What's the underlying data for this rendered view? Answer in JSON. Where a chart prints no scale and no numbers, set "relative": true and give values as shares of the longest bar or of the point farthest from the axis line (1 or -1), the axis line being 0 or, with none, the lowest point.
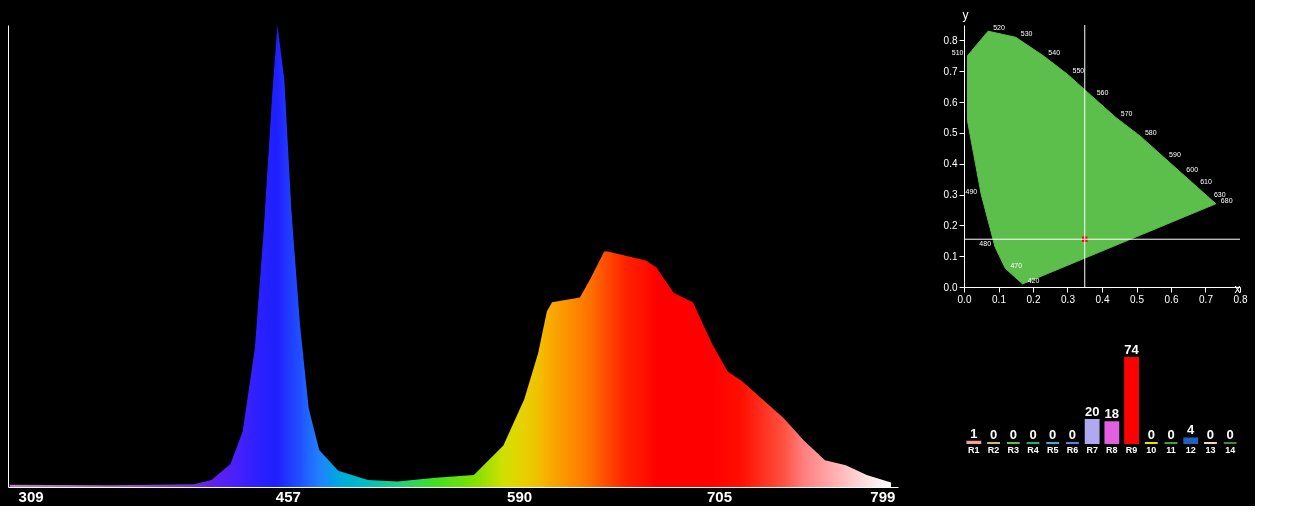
{
  "chart_data": [
    {
      "type": "area",
      "relative": true,
      "tick_labels": "x",
      "grid": false,
      "x": [
        297,
        354,
        403,
        413,
        424,
        431,
        438,
        443,
        448,
        451,
        455,
        459,
        464,
        469,
        475,
        486,
        503,
        520,
        542,
        564,
        581,
        593,
        601,
        606,
        609,
        625,
        631,
        639,
        641,
        652,
        663,
        669,
        679,
        690,
        701,
        710,
        718,
        730,
        742,
        754,
        766,
        778,
        790,
        804
      ],
      "xlim": [
        296,
        808
      ],
      "xticks": [
        309,
        457,
        590,
        705,
        799
      ],
      "series": [
        {
          "type": "area",
          "values": [
            0.005,
            0.004,
            0.006,
            0.015,
            0.05,
            0.12,
            0.3,
            0.55,
            0.85,
            1,
            0.88,
            0.6,
            0.35,
            0.17,
            0.08,
            0.035,
            0.015,
            0.012,
            0.02,
            0.026,
            0.09,
            0.19,
            0.29,
            0.38,
            0.4,
            0.41,
            0.45,
            0.51,
            0.51,
            0.5,
            0.49,
            0.475,
            0.42,
            0.4,
            0.31,
            0.25,
            0.23,
            0.19,
            0.15,
            0.1,
            0.058,
            0.047,
            0.026,
            0.01
          ],
          "colors": [
            "#c080c0",
            "#a060c0",
            "#7030e0",
            "#6020f0",
            "#5020f8",
            "#4020ff",
            "#3020ff",
            "#2820ff",
            "#2020ff",
            "#2020ff",
            "#2030ff",
            "#2040ff",
            "#2050ff",
            "#2068ff",
            "#2080ff",
            "#00a8e0",
            "#00c0c0",
            "#20d080",
            "#40e020",
            "#80e000",
            "#d0e000",
            "#e8d000",
            "#f0c000",
            "#f8b000",
            "#f8a800",
            "#ff8000",
            "#ff7000",
            "#ff5000",
            "#ff4800",
            "#ff2000",
            "#ff1000",
            "#ff0000",
            "#ff0000",
            "#ff0000",
            "#ff0000",
            "#ff0800",
            "#ff1000",
            "#ff3020",
            "#ff5040",
            "#ff8080",
            "#ffa0a0",
            "#ffc0c0",
            "#ffe0e0",
            "#ffffff"
          ]
        }
      ]
    },
    {
      "type": "scatter",
      "xlabel": "x",
      "ylabel": "y",
      "grid": false,
      "xlim": [
        0,
        0.8
      ],
      "ylim": [
        0,
        0.85
      ],
      "xticks": [
        {
          "value": 0,
          "label": "0.0"
        },
        0.1,
        0.2,
        0.3,
        0.4,
        0.5,
        0.6,
        0.7,
        0.8
      ],
      "yticks": [
        {
          "value": 0,
          "label": "0.0"
        },
        0.1,
        0.2,
        0.3,
        0.4,
        0.5,
        0.6,
        0.7,
        0.8
      ],
      "series": [
        {
          "type": "area",
          "color": "#5cbf4c",
          "x": [
            0.17,
            0.12,
            0.09,
            0.05,
            0.01,
            0.01,
            0.07,
            0.15,
            0.23,
            0.3,
            0.37,
            0.44,
            0.51,
            0.58,
            0.63,
            0.67,
            0.71,
            0.73,
            0.17
          ],
          "values": [
            0.01,
            0.06,
            0.13,
            0.3,
            0.54,
            0.75,
            0.83,
            0.81,
            0.75,
            0.69,
            0.62,
            0.55,
            0.49,
            0.42,
            0.37,
            0.33,
            0.29,
            0.27,
            0.01
          ]
        },
        {
          "type": "scatter",
          "marker": "square",
          "color": "#ff0000",
          "x": [
            0.35
          ],
          "values": [
            0.155
          ]
        }
      ],
      "ref_lines": [
        {
          "axis": "x",
          "value": 0.35,
          "color": "#ffffff"
        },
        {
          "axis": "y",
          "value": 0.155,
          "color": "#ffffff"
        }
      ],
      "annotations": [
        {
          "text": "420",
          "x": 0.17,
          "y": 0.01
        },
        {
          "text": "470",
          "x": 0.12,
          "y": 0.06
        },
        {
          "text": "480",
          "x": 0.09,
          "y": 0.13
        },
        {
          "text": "490",
          "x": 0.05,
          "y": 0.3
        },
        {
          "text": "510",
          "x": 0.01,
          "y": 0.75
        },
        {
          "text": "520",
          "x": 0.07,
          "y": 0.83
        },
        {
          "text": "530",
          "x": 0.15,
          "y": 0.81
        },
        {
          "text": "540",
          "x": 0.23,
          "y": 0.75
        },
        {
          "text": "550",
          "x": 0.3,
          "y": 0.69
        },
        {
          "text": "560",
          "x": 0.37,
          "y": 0.62
        },
        {
          "text": "570",
          "x": 0.44,
          "y": 0.55
        },
        {
          "text": "580",
          "x": 0.51,
          "y": 0.49
        },
        {
          "text": "590",
          "x": 0.58,
          "y": 0.42
        },
        {
          "text": "600",
          "x": 0.63,
          "y": 0.37
        },
        {
          "text": "610",
          "x": 0.67,
          "y": 0.33
        },
        {
          "text": "630",
          "x": 0.71,
          "y": 0.29
        },
        {
          "text": "680",
          "x": 0.73,
          "y": 0.27
        }
      ]
    },
    {
      "type": "bar",
      "data_labels": true,
      "tick_labels": "x",
      "grid": false,
      "categories": [
        "R1",
        "R2",
        "R3",
        "R4",
        "R5",
        "R6",
        "R7",
        "R8",
        "R9",
        "10",
        "11",
        "12",
        "13",
        "14"
      ],
      "values": [
        1,
        0,
        0,
        0,
        0,
        0,
        20,
        18,
        74,
        0,
        0,
        4,
        0,
        0
      ],
      "colors": [
        "#f4a0a0",
        "#c8c060",
        "#60c040",
        "#20b080",
        "#40b0d0",
        "#6080e0",
        "#b0a8f0",
        "#e060e0",
        "#ff0000",
        "#f0e000",
        "#40a040",
        "#2060c0",
        "#f0d8c0",
        "#508040"
      ]
    }
  ]
}
